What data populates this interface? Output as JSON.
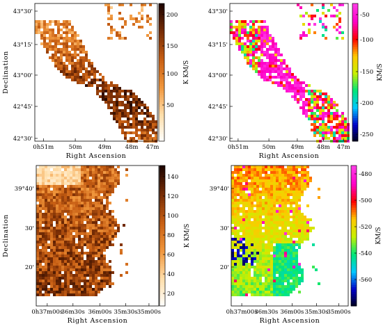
{
  "chart_data": [
    {
      "id": "m33-top-intensity",
      "type": "heatmap",
      "xlabel": "Right Ascension",
      "ylabel": "Declination",
      "x_ticks": [
        "0h51m",
        "50m",
        "49m",
        "48m",
        "47m"
      ],
      "y_ticks": [
        "43°30'",
        "43°15'",
        "43°00'",
        "42°45'",
        "42°30'"
      ],
      "colorbar": {
        "label": "K KM/S",
        "ticks": [
          "200",
          "150",
          "100",
          "50"
        ],
        "range": [
          0,
          200
        ],
        "colormap": "orange-heat"
      }
    },
    {
      "id": "m33-top-velocity",
      "type": "heatmap",
      "xlabel": "Right Ascension",
      "ylabel": "",
      "x_ticks": [
        "0h51m",
        "50m",
        "49m",
        "48m",
        "47m"
      ],
      "y_ticks": [
        "43°30'",
        "43°15'",
        "43°00'",
        "42°45'",
        "42°30'"
      ],
      "colorbar": {
        "label": "KM/S",
        "ticks": [
          "-50",
          "-100",
          "-150",
          "-200",
          "-250"
        ],
        "range": [
          -270,
          -30
        ],
        "colormap": "rainbow"
      }
    },
    {
      "id": "m31-bottom-intensity",
      "type": "heatmap",
      "xlabel": "Right Ascension",
      "ylabel": "Declination",
      "x_ticks": [
        "0h37m00s",
        "36m30s",
        "36m00s",
        "35m30s",
        "35m00s"
      ],
      "y_ticks": [
        "39°40'",
        "30'",
        "20'"
      ],
      "colorbar": {
        "label": "K KM/S",
        "ticks": [
          "140",
          "120",
          "100",
          "80",
          "60",
          "40",
          "20"
        ],
        "range": [
          0,
          150
        ],
        "colormap": "orange-heat"
      }
    },
    {
      "id": "m31-bottom-velocity",
      "type": "heatmap",
      "xlabel": "Right Ascension",
      "ylabel": "",
      "x_ticks": [
        "0h37m00s",
        "36m30s",
        "36m00s",
        "35m30s",
        "35m00s"
      ],
      "y_ticks": [
        "39°40'",
        "30'",
        "20'"
      ],
      "colorbar": {
        "label": "KM/S",
        "ticks": [
          "-480",
          "-500",
          "-520",
          "-540",
          "-560"
        ],
        "range": [
          -570,
          -470
        ],
        "colormap": "rainbow"
      }
    }
  ]
}
